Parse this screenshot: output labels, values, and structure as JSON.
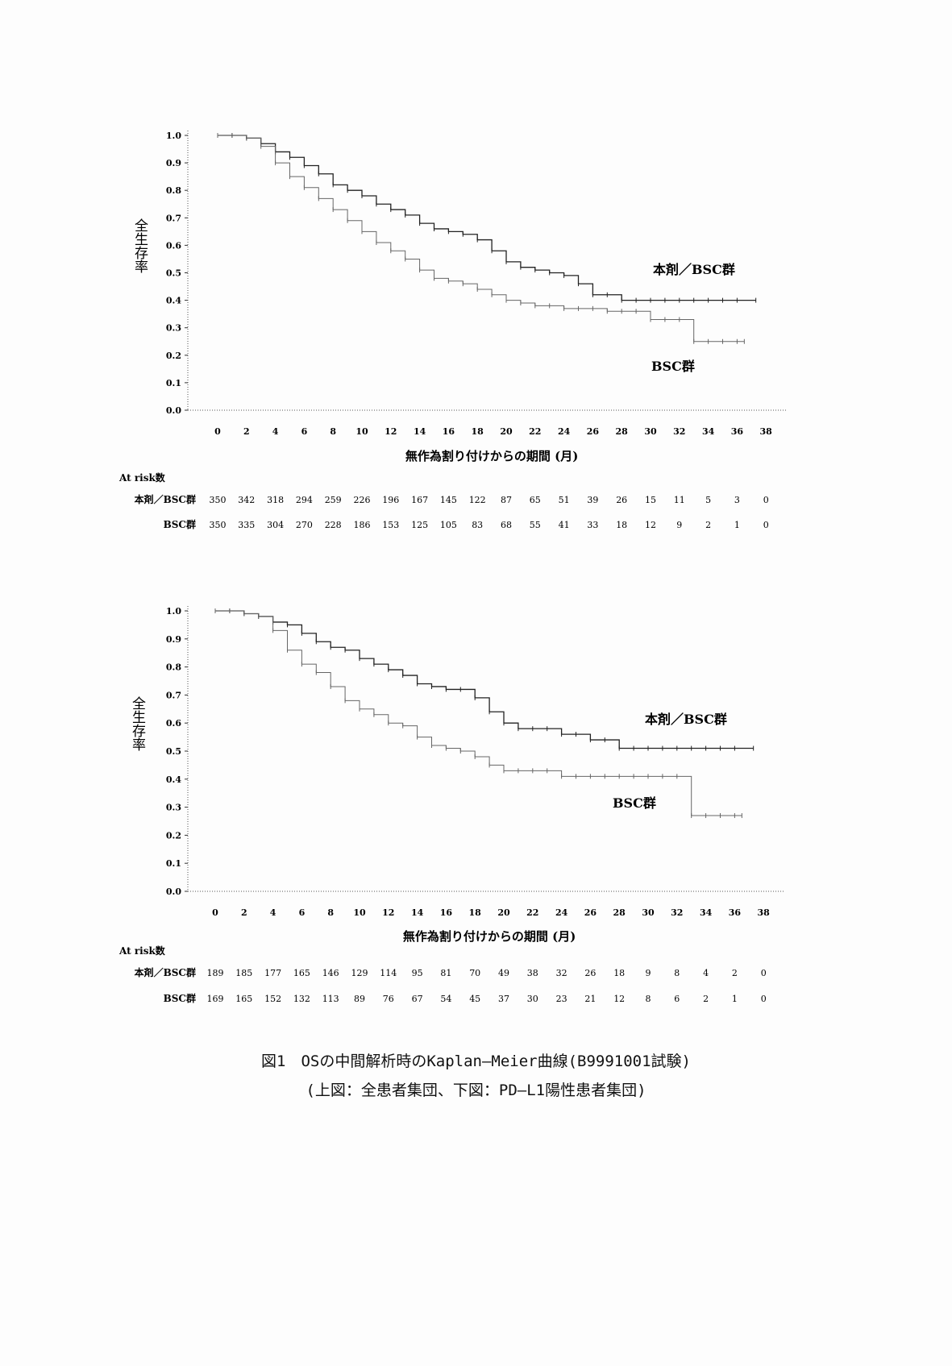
{
  "chart_data": [
    {
      "type": "line",
      "subtype": "kaplan-meier",
      "xlabel": "無作為割り付けからの期間 (月)",
      "ylabel": "全生存率",
      "xlim": [
        0,
        38
      ],
      "ylim": [
        0.0,
        1.0
      ],
      "xticks": [
        0,
        2,
        4,
        6,
        8,
        10,
        12,
        14,
        16,
        18,
        20,
        22,
        24,
        26,
        28,
        30,
        32,
        34,
        36,
        38
      ],
      "yticks": [
        0.0,
        0.1,
        0.2,
        0.3,
        0.4,
        0.5,
        0.6,
        0.7,
        0.8,
        0.9,
        1.0
      ],
      "series": [
        {
          "name": "本剤／BSC群",
          "x": [
            0,
            1,
            2,
            3,
            4,
            5,
            6,
            7,
            8,
            9,
            10,
            11,
            12,
            13,
            14,
            15,
            16,
            17,
            18,
            19,
            20,
            21,
            22,
            23,
            24,
            25,
            26,
            27,
            28,
            29,
            30,
            31,
            32,
            33,
            34,
            35,
            36,
            37.3
          ],
          "y": [
            1.0,
            1.0,
            0.99,
            0.97,
            0.94,
            0.92,
            0.89,
            0.86,
            0.82,
            0.8,
            0.78,
            0.75,
            0.73,
            0.71,
            0.68,
            0.66,
            0.65,
            0.64,
            0.62,
            0.58,
            0.54,
            0.52,
            0.51,
            0.5,
            0.49,
            0.46,
            0.42,
            0.42,
            0.4,
            0.4,
            0.4,
            0.4,
            0.4,
            0.4,
            0.4,
            0.4,
            0.4,
            0.4
          ]
        },
        {
          "name": "BSC群",
          "x": [
            0,
            1,
            2,
            3,
            4,
            5,
            6,
            7,
            8,
            9,
            10,
            11,
            12,
            13,
            14,
            15,
            16,
            17,
            18,
            19,
            20,
            21,
            22,
            23,
            24,
            25,
            26,
            27,
            28,
            29,
            30,
            31,
            32,
            33,
            34,
            35,
            36,
            36.5
          ],
          "y": [
            1.0,
            1.0,
            0.99,
            0.96,
            0.9,
            0.85,
            0.81,
            0.77,
            0.73,
            0.69,
            0.65,
            0.61,
            0.58,
            0.55,
            0.51,
            0.48,
            0.47,
            0.46,
            0.44,
            0.42,
            0.4,
            0.39,
            0.38,
            0.38,
            0.37,
            0.37,
            0.37,
            0.36,
            0.36,
            0.36,
            0.33,
            0.33,
            0.33,
            0.25,
            0.25,
            0.25,
            0.25,
            0.25
          ]
        }
      ],
      "at_risk": {
        "header": "At risk数",
        "rows": [
          {
            "label": "本剤／BSC群",
            "values": [
              "350",
              "342",
              "318",
              "294",
              "259",
              "226",
              "196",
              "167",
              "145",
              "122",
              "87",
              "65",
              "51",
              "39",
              "26",
              "15",
              "11",
              "5",
              "3",
              "0"
            ]
          },
          {
            "label": "BSC群",
            "values": [
              "350",
              "335",
              "304",
              "270",
              "228",
              "186",
              "153",
              "125",
              "105",
              "83",
              "68",
              "55",
              "41",
              "33",
              "18",
              "12",
              "9",
              "2",
              "1",
              "0"
            ]
          }
        ]
      },
      "annotations": [
        "本剤／BSC群",
        "BSC群"
      ]
    },
    {
      "type": "line",
      "subtype": "kaplan-meier",
      "xlabel": "無作為割り付けからの期間 (月)",
      "ylabel": "全生存率",
      "xlim": [
        0,
        38
      ],
      "ylim": [
        0.0,
        1.0
      ],
      "xticks": [
        0,
        2,
        4,
        6,
        8,
        10,
        12,
        14,
        16,
        18,
        20,
        22,
        24,
        26,
        28,
        30,
        32,
        34,
        36,
        38
      ],
      "yticks": [
        0.0,
        0.1,
        0.2,
        0.3,
        0.4,
        0.5,
        0.6,
        0.7,
        0.8,
        0.9,
        1.0
      ],
      "series": [
        {
          "name": "本剤／BSC群",
          "x": [
            0,
            1,
            2,
            3,
            4,
            5,
            6,
            7,
            8,
            9,
            10,
            11,
            12,
            13,
            14,
            15,
            16,
            17,
            18,
            19,
            20,
            21,
            22,
            23,
            24,
            25,
            26,
            27,
            28,
            29,
            30,
            31,
            32,
            33,
            34,
            35,
            36,
            37.3
          ],
          "y": [
            1.0,
            1.0,
            0.99,
            0.98,
            0.96,
            0.95,
            0.92,
            0.89,
            0.87,
            0.86,
            0.83,
            0.81,
            0.79,
            0.77,
            0.74,
            0.73,
            0.72,
            0.72,
            0.69,
            0.64,
            0.6,
            0.58,
            0.58,
            0.58,
            0.56,
            0.56,
            0.54,
            0.54,
            0.51,
            0.51,
            0.51,
            0.51,
            0.51,
            0.51,
            0.51,
            0.51,
            0.51,
            0.51
          ]
        },
        {
          "name": "BSC群",
          "x": [
            0,
            1,
            2,
            3,
            4,
            5,
            6,
            7,
            8,
            9,
            10,
            11,
            12,
            13,
            14,
            15,
            16,
            17,
            18,
            19,
            20,
            21,
            22,
            23,
            24,
            25,
            26,
            27,
            28,
            29,
            30,
            31,
            32,
            33,
            34,
            35,
            36,
            36.5
          ],
          "y": [
            1.0,
            1.0,
            0.99,
            0.98,
            0.93,
            0.86,
            0.81,
            0.78,
            0.73,
            0.68,
            0.65,
            0.63,
            0.6,
            0.59,
            0.55,
            0.52,
            0.51,
            0.5,
            0.48,
            0.45,
            0.43,
            0.43,
            0.43,
            0.43,
            0.41,
            0.41,
            0.41,
            0.41,
            0.41,
            0.41,
            0.41,
            0.41,
            0.41,
            0.27,
            0.27,
            0.27,
            0.27,
            0.27
          ]
        }
      ],
      "at_risk": {
        "header": "At risk数",
        "rows": [
          {
            "label": "本剤／BSC群",
            "values": [
              "189",
              "185",
              "177",
              "165",
              "146",
              "129",
              "114",
              "95",
              "81",
              "70",
              "49",
              "38",
              "32",
              "26",
              "18",
              "9",
              "8",
              "4",
              "2",
              "0"
            ]
          },
          {
            "label": "BSC群",
            "values": [
              "169",
              "165",
              "152",
              "132",
              "113",
              "89",
              "76",
              "67",
              "54",
              "45",
              "37",
              "30",
              "23",
              "21",
              "12",
              "8",
              "6",
              "2",
              "1",
              "0"
            ]
          }
        ]
      },
      "annotations": [
        "本剤／BSC群",
        "BSC群"
      ]
    }
  ],
  "caption": {
    "line1": "図1　OSの中間解析時のKaplan—Meier曲線(B9991001試験)",
    "line2": "(上図：全患者集団、下図：PD—L1陽性患者集団)"
  },
  "colors": {
    "treatment": "#222222",
    "control": "#666666",
    "axis": "#555555"
  }
}
